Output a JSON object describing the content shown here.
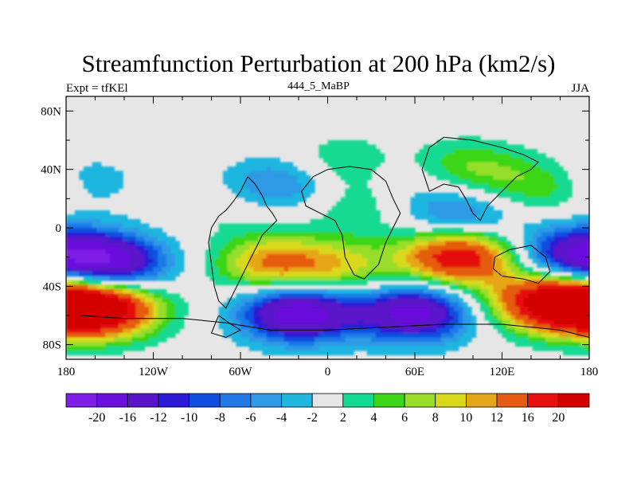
{
  "chart_data": {
    "type": "heatmap",
    "title": "Streamfunction Perturbation at 200 hPa (km2/s)",
    "subtitle_left": "Expt = tfKEl",
    "subtitle_center": "444_5_MaBP",
    "subtitle_right": "JJA",
    "x_ticks": [
      "180",
      "120W",
      "60W",
      "0",
      "60E",
      "120E",
      "180"
    ],
    "y_ticks": [
      "80N",
      "40N",
      "0",
      "40S",
      "80S"
    ],
    "xlim": [
      -180,
      180
    ],
    "ylim": [
      -90,
      90
    ],
    "colorbar": {
      "labels": [
        "-20",
        "-16",
        "-12",
        "-10",
        "-8",
        "-6",
        "-4",
        "-2",
        "2",
        "4",
        "6",
        "8",
        "10",
        "12",
        "16",
        "20"
      ],
      "colors": [
        "#7f1ee6",
        "#6a0fdc",
        "#5a14c8",
        "#2b1ad6",
        "#0f4fe0",
        "#1f7ae8",
        "#2f9ae6",
        "#1fb6e0",
        "#e6e6e6",
        "#13d992",
        "#3ad617",
        "#97de2a",
        "#d9d91a",
        "#e6a619",
        "#e55c10",
        "#e61010",
        "#d40000"
      ]
    },
    "anomalies": [
      {
        "lon": -155,
        "lat": -55,
        "value": 22
      },
      {
        "lon": -150,
        "lat": -25,
        "value": -18
      },
      {
        "lon": -170,
        "lat": 32,
        "value": -4
      },
      {
        "lon": -60,
        "lat": 15,
        "value": 3
      },
      {
        "lon": -35,
        "lat": 28,
        "value": -8
      },
      {
        "lon": -38,
        "lat": -25,
        "value": 12
      },
      {
        "lon": 10,
        "lat": -28,
        "value": 8
      },
      {
        "lon": -20,
        "lat": -58,
        "value": -20
      },
      {
        "lon": 60,
        "lat": -58,
        "value": -18
      },
      {
        "lon": 10,
        "lat": 45,
        "value": 4
      },
      {
        "lon": 20,
        "lat": 15,
        "value": 4
      },
      {
        "lon": 60,
        "lat": 32,
        "value": -3
      },
      {
        "lon": 90,
        "lat": 8,
        "value": -8
      },
      {
        "lon": 95,
        "lat": 40,
        "value": 7
      },
      {
        "lon": 90,
        "lat": -20,
        "value": 20
      },
      {
        "lon": 150,
        "lat": 28,
        "value": 6
      },
      {
        "lon": 170,
        "lat": -18,
        "value": -14
      },
      {
        "lon": 170,
        "lat": -52,
        "value": 20
      },
      {
        "lon": 140,
        "lat": -50,
        "value": 10
      }
    ]
  }
}
